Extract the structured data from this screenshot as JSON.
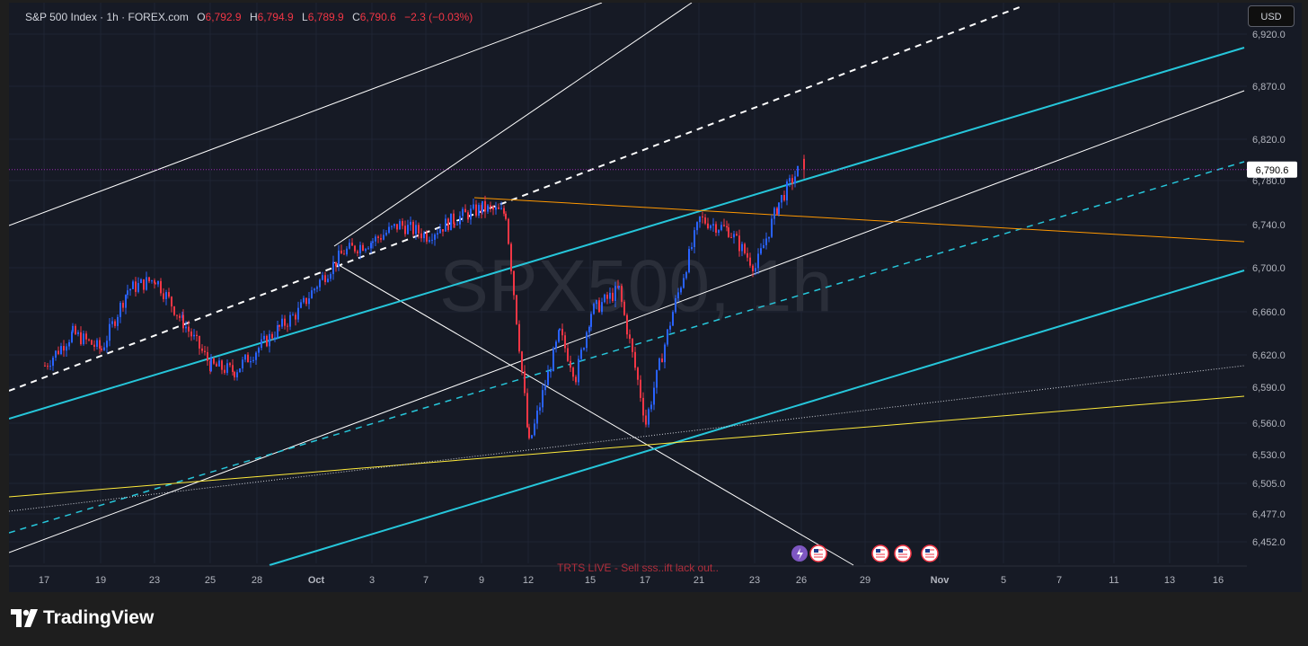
{
  "legend": {
    "symbol": "S&P 500 Index · 1h · FOREX.com",
    "open_label": "O",
    "open": "6,792.9",
    "high_label": "H",
    "high": "6,794.9",
    "low_label": "L",
    "low": "6,789.9",
    "close_label": "C",
    "close": "6,790.6",
    "change": "−2.3 (−0.03%)"
  },
  "currency_button": "USD",
  "watermark": "SPX500, 1h",
  "event_text": "TRTS LIVE - Sell sss..ift lack out..",
  "brand": "TradingView",
  "colors": {
    "background": "#161a25",
    "bull": "#2962ff",
    "bear": "#f23645",
    "channel_cyan": "#26c6da",
    "trend_orange": "#ff9800",
    "trend_yellow": "#ffeb3b",
    "price_line": "#9c27b0"
  },
  "chart_data": {
    "type": "candlestick",
    "title": "S&P 500 Index · 1h · FOREX.com",
    "last_price": "6,790.6",
    "y_ticks": [
      "6,920.0",
      "6,870.0",
      "6,820.0",
      "6,780.0",
      "6,740.0",
      "6,700.0",
      "6,660.0",
      "6,620.0",
      "6,590.0",
      "6,560.0",
      "6,530.0",
      "6,505.0",
      "6,477.0",
      "6,452.0"
    ],
    "x_ticks": [
      "17",
      "19",
      "23",
      "25",
      "28",
      "Oct",
      "3",
      "7",
      "9",
      "12",
      "15",
      "17",
      "21",
      "23",
      "26",
      "29",
      "Nov",
      "5",
      "7",
      "11",
      "13",
      "16"
    ],
    "price_path_anchors": [
      {
        "x": "17",
        "y": 6610
      },
      {
        "x": "18",
        "y": 6640
      },
      {
        "x": "19",
        "y": 6625
      },
      {
        "x": "22",
        "y": 6680
      },
      {
        "x": "23",
        "y": 6690
      },
      {
        "x": "24",
        "y": 6650
      },
      {
        "x": "25",
        "y": 6610
      },
      {
        "x": "26",
        "y": 6605
      },
      {
        "x": "29",
        "y": 6645
      },
      {
        "x": "30",
        "y": 6660
      },
      {
        "x": "Oct",
        "y": 6685
      },
      {
        "x": "2",
        "y": 6715
      },
      {
        "x": "3",
        "y": 6725
      },
      {
        "x": "6",
        "y": 6740
      },
      {
        "x": "7",
        "y": 6730
      },
      {
        "x": "8",
        "y": 6745
      },
      {
        "x": "9",
        "y": 6755
      },
      {
        "x": "10",
        "y": 6750
      },
      {
        "x": "12",
        "y": 6540
      },
      {
        "x": "13",
        "y": 6640
      },
      {
        "x": "14",
        "y": 6600
      },
      {
        "x": "15",
        "y": 6660
      },
      {
        "x": "16",
        "y": 6680
      },
      {
        "x": "17",
        "y": 6560
      },
      {
        "x": "20",
        "y": 6660
      },
      {
        "x": "21",
        "y": 6745
      },
      {
        "x": "22",
        "y": 6735
      },
      {
        "x": "23",
        "y": 6700
      },
      {
        "x": "24",
        "y": 6760
      },
      {
        "x": "26",
        "y": 6790.6
      }
    ],
    "drawings": [
      {
        "type": "orange_trendline"
      },
      {
        "type": "yellow_trendline"
      },
      {
        "type": "white_trendline"
      },
      {
        "type": "white_dashed_trendline"
      },
      {
        "type": "cyan_parallel_channel"
      },
      {
        "type": "dotted_trendline"
      }
    ],
    "grid": true
  }
}
